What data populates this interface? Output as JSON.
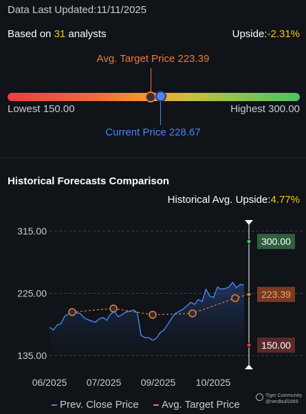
{
  "header": {
    "updated_prefix": "Data Last Updated:",
    "updated_date": "11/11/2025",
    "based_prefix": "Based on ",
    "analyst_count": "31",
    "based_suffix": " analysts",
    "upside_label": "Upside:",
    "upside_value": "-2.31%"
  },
  "gauge": {
    "avg_label": "Avg. Target Price 223.39",
    "current_label": "Current Price 228.67",
    "lowest_label": "Lowest 150.00",
    "highest_label": "Highest 300.00",
    "lowest": 150.0,
    "highest": 300.0,
    "avg_target": 223.39,
    "current": 228.67
  },
  "history": {
    "title": "Historical Forecasts Comparison",
    "upside_label": "Historical Avg. Upside:",
    "upside_value": "4.77%"
  },
  "chart_data": {
    "type": "line",
    "y_ticks": [
      "315.00",
      "225.00",
      "135.00"
    ],
    "y_tick_values": [
      315,
      225,
      135
    ],
    "ylim": [
      135,
      315
    ],
    "x_ticks": [
      "06/2025",
      "07/2025",
      "09/2025",
      "10/2025"
    ],
    "series": [
      {
        "name": "Prev. Close Price",
        "color": "#4a86f0",
        "values": [
          176,
          172,
          179,
          181,
          192,
          195,
          199,
          197,
          196,
          190,
          187,
          185,
          183,
          188,
          190,
          186,
          195,
          199,
          191,
          194,
          198,
          199,
          201,
          197,
          164,
          161,
          161,
          157,
          160,
          168,
          172,
          180,
          189,
          196,
          199,
          202,
          207,
          212,
          209,
          216,
          213,
          231,
          221,
          219,
          234,
          231,
          232,
          234,
          241,
          233,
          238,
          237
        ]
      },
      {
        "name": "Avg. Target Price",
        "color": "#f07a3c",
        "values": [
          198,
          203,
          194,
          196,
          218,
          223.39
        ]
      }
    ],
    "right_labels": [
      "300.00",
      "223.39",
      "150.00"
    ],
    "right_label_colors": [
      "#2f5f3e",
      "#7a3a22",
      "#5a2a2a"
    ]
  },
  "legend": {
    "prev_close": "Prev. Close Price",
    "avg_target": "Avg. Target Price"
  },
  "watermark": {
    "line1": "Tiger Community",
    "line2": "@nerdbull1669"
  }
}
